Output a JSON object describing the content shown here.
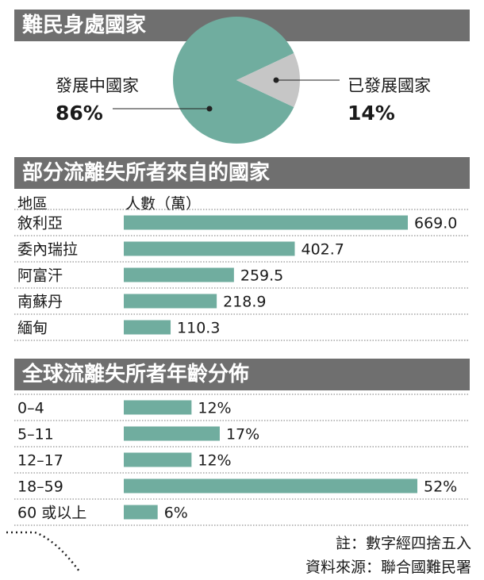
{
  "panel1": {
    "title": "難民身處國家"
  },
  "panel2": {
    "title": "部分流離失所者來自的國家",
    "col_label": "地區",
    "col_value": "人數（萬）"
  },
  "panel3": {
    "title": "全球流離失所者年齡分佈"
  },
  "notes": {
    "rounding": "註：數字經四捨五入",
    "source": "資料來源：聯合國難民署"
  },
  "colors": {
    "teal": "#70ad9f",
    "grey": "#c6c6c6",
    "header": "#6f6f6f"
  },
  "chart_data": [
    {
      "type": "pie",
      "title": "難民身處國家",
      "slices": [
        {
          "label": "發展中國家",
          "value": 86,
          "display": "86%"
        },
        {
          "label": "已發展國家",
          "value": 14,
          "display": "14%"
        }
      ]
    },
    {
      "type": "bar",
      "title": "部分流離失所者來自的國家",
      "xlabel": "地區",
      "ylabel": "人數（萬）",
      "categories": [
        "敘利亞",
        "委內瑞拉",
        "阿富汗",
        "南蘇丹",
        "緬甸"
      ],
      "values": [
        669.0,
        402.7,
        259.5,
        218.9,
        110.3
      ],
      "labels": [
        "669.0",
        "402.7",
        "259.5",
        "218.9",
        "110.3"
      ]
    },
    {
      "type": "bar",
      "title": "全球流離失所者年齡分佈",
      "categories": [
        "0–4",
        "5–11",
        "12–17",
        "18–59",
        "60 或以上"
      ],
      "values": [
        12,
        17,
        12,
        52,
        6
      ],
      "labels": [
        "12%",
        "17%",
        "12%",
        "52%",
        "6%"
      ]
    }
  ]
}
